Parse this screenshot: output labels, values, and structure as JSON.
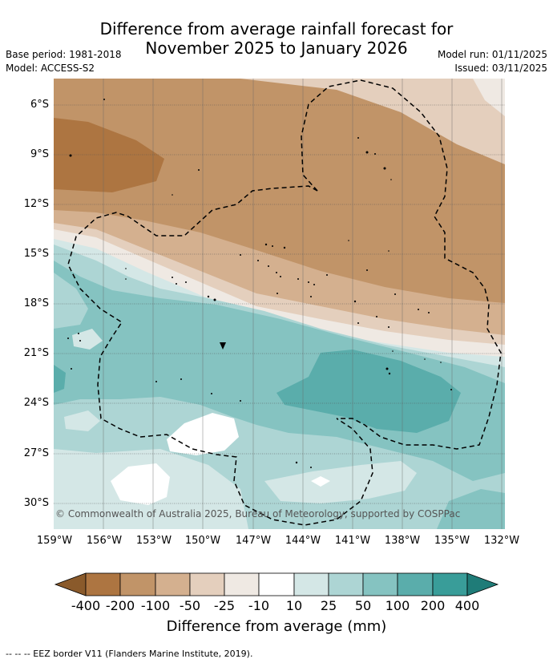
{
  "title": {
    "line1": "Difference from average rainfall forecast for",
    "line2": "November 2025 to January 2026"
  },
  "metadata": {
    "base_period": "Base period: 1981-2018",
    "model": "Model: ACCESS-S2",
    "model_run": "Model run: 01/11/2025",
    "issued": "Issued: 03/11/2025"
  },
  "map": {
    "latitude_labels": [
      "6°S",
      "9°S",
      "12°S",
      "15°S",
      "18°S",
      "21°S",
      "24°S",
      "27°S",
      "30°S"
    ],
    "longitude_labels": [
      "159°W",
      "156°W",
      "153°W",
      "150°W",
      "147°W",
      "144°W",
      "141°W",
      "138°W",
      "135°W",
      "132°W"
    ],
    "copyright": "© Commonwealth of Australia 2025, Bureau of Meteorology, supported by COSPPac"
  },
  "colorbar": {
    "title": "Difference from average (mm)",
    "ticks": [
      "-400",
      "-200",
      "-100",
      "-50",
      "-25",
      "-10",
      "10",
      "25",
      "50",
      "100",
      "200",
      "400"
    ],
    "colors": [
      "#8a5a2b",
      "#ad7541",
      "#c19468",
      "#d4b08f",
      "#e4cfbd",
      "#efe9e3",
      "#ffffff",
      "#d4e7e6",
      "#add5d4",
      "#85c3c1",
      "#5aadab",
      "#399d99",
      "#1f7c78"
    ]
  },
  "footnote": "-- -- -- EEZ border V11 (Flanders Marine Institute, 2019)."
}
